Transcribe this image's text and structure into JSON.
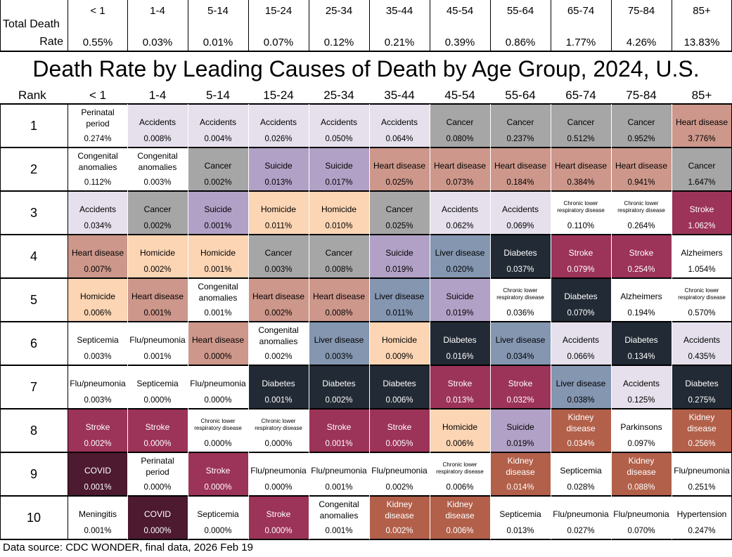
{
  "chart_data": {
    "type": "table",
    "title": "Death Rate by Leading Causes of Death by Age Group, 2024, U.S.",
    "age_groups": [
      "< 1",
      "1-4",
      "5-14",
      "15-24",
      "25-34",
      "35-44",
      "45-54",
      "55-64",
      "65-74",
      "75-84",
      "85+"
    ],
    "total_label_line1": "Total Death",
    "total_label_line2": "Rate",
    "total_rates": [
      "0.55%",
      "0.03%",
      "0.01%",
      "0.07%",
      "0.12%",
      "0.21%",
      "0.39%",
      "0.86%",
      "1.77%",
      "4.26%",
      "13.83%"
    ],
    "rank_label": "Rank",
    "ranks": [
      "1",
      "2",
      "3",
      "4",
      "5",
      "6",
      "7",
      "8",
      "9",
      "10"
    ],
    "cause_colors": {
      "Accidents": "#e5e0ec",
      "Cancer": "#a6a6a6",
      "Heart disease": "#cd978b",
      "Suicide": "#b2a1c6",
      "Homicide": "#fcd5b4",
      "Diabetes": "#222a35",
      "Stroke": "#9c3358",
      "Liver disease": "#8496b0",
      "COVID": "#4d1a30",
      "Kidney disease": "#b2604a"
    },
    "dark_text_causes": [
      "Diabetes",
      "Stroke",
      "COVID",
      "Kidney disease"
    ],
    "rows": [
      [
        [
          "Perinatal period",
          "0.274%"
        ],
        [
          "Accidents",
          "0.008%"
        ],
        [
          "Accidents",
          "0.004%"
        ],
        [
          "Accidents",
          "0.026%"
        ],
        [
          "Accidents",
          "0.050%"
        ],
        [
          "Accidents",
          "0.064%"
        ],
        [
          "Cancer",
          "0.080%"
        ],
        [
          "Cancer",
          "0.237%"
        ],
        [
          "Cancer",
          "0.512%"
        ],
        [
          "Cancer",
          "0.952%"
        ],
        [
          "Heart disease",
          "3.776%"
        ]
      ],
      [
        [
          "Congenital anomalies",
          "0.112%"
        ],
        [
          "Congenital anomalies",
          "0.003%"
        ],
        [
          "Cancer",
          "0.002%"
        ],
        [
          "Suicide",
          "0.013%"
        ],
        [
          "Suicide",
          "0.017%"
        ],
        [
          "Heart disease",
          "0.025%"
        ],
        [
          "Heart disease",
          "0.073%"
        ],
        [
          "Heart disease",
          "0.184%"
        ],
        [
          "Heart disease",
          "0.384%"
        ],
        [
          "Heart disease",
          "0.941%"
        ],
        [
          "Cancer",
          "1.647%"
        ]
      ],
      [
        [
          "Accidents",
          "0.034%"
        ],
        [
          "Cancer",
          "0.002%"
        ],
        [
          "Suicide",
          "0.001%"
        ],
        [
          "Homicide",
          "0.011%"
        ],
        [
          "Homicide",
          "0.010%"
        ],
        [
          "Cancer",
          "0.025%"
        ],
        [
          "Accidents",
          "0.062%"
        ],
        [
          "Accidents",
          "0.069%"
        ],
        [
          "Chronic lower respiratory disease",
          "0.110%"
        ],
        [
          "Chronic lower respiratory disease",
          "0.264%"
        ],
        [
          "Stroke",
          "1.062%"
        ]
      ],
      [
        [
          "Heart disease",
          "0.007%"
        ],
        [
          "Homicide",
          "0.002%"
        ],
        [
          "Homicide",
          "0.001%"
        ],
        [
          "Cancer",
          "0.003%"
        ],
        [
          "Cancer",
          "0.008%"
        ],
        [
          "Suicide",
          "0.019%"
        ],
        [
          "Liver disease",
          "0.020%"
        ],
        [
          "Diabetes",
          "0.037%"
        ],
        [
          "Stroke",
          "0.079%"
        ],
        [
          "Stroke",
          "0.254%"
        ],
        [
          "Alzheimers",
          "1.054%"
        ]
      ],
      [
        [
          "Homicide",
          "0.006%"
        ],
        [
          "Heart disease",
          "0.001%"
        ],
        [
          "Congenital anomalies",
          "0.001%"
        ],
        [
          "Heart disease",
          "0.002%"
        ],
        [
          "Heart disease",
          "0.008%"
        ],
        [
          "Liver disease",
          "0.011%"
        ],
        [
          "Suicide",
          "0.019%"
        ],
        [
          "Chronic lower respiratory disease",
          "0.036%"
        ],
        [
          "Diabetes",
          "0.070%"
        ],
        [
          "Alzheimers",
          "0.194%"
        ],
        [
          "Chronic lower respiratory disease",
          "0.570%"
        ]
      ],
      [
        [
          "Septicemia",
          "0.003%"
        ],
        [
          "Flu/pneumonia",
          "0.001%"
        ],
        [
          "Heart disease",
          "0.000%"
        ],
        [
          "Congenital anomalies",
          "0.002%"
        ],
        [
          "Liver disease",
          "0.003%"
        ],
        [
          "Homicide",
          "0.009%"
        ],
        [
          "Diabetes",
          "0.016%"
        ],
        [
          "Liver disease",
          "0.034%"
        ],
        [
          "Accidents",
          "0.066%"
        ],
        [
          "Diabetes",
          "0.134%"
        ],
        [
          "Accidents",
          "0.435%"
        ]
      ],
      [
        [
          "Flu/pneumonia",
          "0.003%"
        ],
        [
          "Septicemia",
          "0.000%"
        ],
        [
          "Flu/pneumonia",
          "0.000%"
        ],
        [
          "Diabetes",
          "0.001%"
        ],
        [
          "Diabetes",
          "0.002%"
        ],
        [
          "Diabetes",
          "0.006%"
        ],
        [
          "Stroke",
          "0.013%"
        ],
        [
          "Stroke",
          "0.032%"
        ],
        [
          "Liver disease",
          "0.038%"
        ],
        [
          "Accidents",
          "0.125%"
        ],
        [
          "Diabetes",
          "0.275%"
        ]
      ],
      [
        [
          "Stroke",
          "0.002%"
        ],
        [
          "Stroke",
          "0.000%"
        ],
        [
          "Chronic lower respiratory disease",
          "0.000%"
        ],
        [
          "Chronic lower respiratory disease",
          "0.000%"
        ],
        [
          "Stroke",
          "0.001%"
        ],
        [
          "Stroke",
          "0.005%"
        ],
        [
          "Homicide",
          "0.006%"
        ],
        [
          "Suicide",
          "0.019%"
        ],
        [
          "Kidney disease",
          "0.034%"
        ],
        [
          "Parkinsons",
          "0.097%"
        ],
        [
          "Kidney disease",
          "0.256%"
        ]
      ],
      [
        [
          "COVID",
          "0.001%"
        ],
        [
          "Perinatal period",
          "0.000%"
        ],
        [
          "Stroke",
          "0.000%"
        ],
        [
          "Flu/pneumonia",
          "0.000%"
        ],
        [
          "Flu/pneumonia",
          "0.001%"
        ],
        [
          "Flu/pneumonia",
          "0.002%"
        ],
        [
          "Chronic lower respiratory disease",
          "0.006%"
        ],
        [
          "Kidney disease",
          "0.014%"
        ],
        [
          "Septicemia",
          "0.028%"
        ],
        [
          "Kidney disease",
          "0.088%"
        ],
        [
          "Flu/pneumonia",
          "0.251%"
        ]
      ],
      [
        [
          "Meningitis",
          "0.001%"
        ],
        [
          "COVID",
          "0.000%"
        ],
        [
          "Septicemia",
          "0.000%"
        ],
        [
          "Stroke",
          "0.000%"
        ],
        [
          "Congenital anomalies",
          "0.001%"
        ],
        [
          "Kidney disease",
          "0.002%"
        ],
        [
          "Kidney disease",
          "0.006%"
        ],
        [
          "Septicemia",
          "0.013%"
        ],
        [
          "Flu/pneumonia",
          "0.027%"
        ],
        [
          "Flu/pneumonia",
          "0.070%"
        ],
        [
          "Hypertension",
          "0.247%"
        ]
      ]
    ],
    "source": "Data source: CDC WONDER, final data, 2026 Feb 19"
  }
}
